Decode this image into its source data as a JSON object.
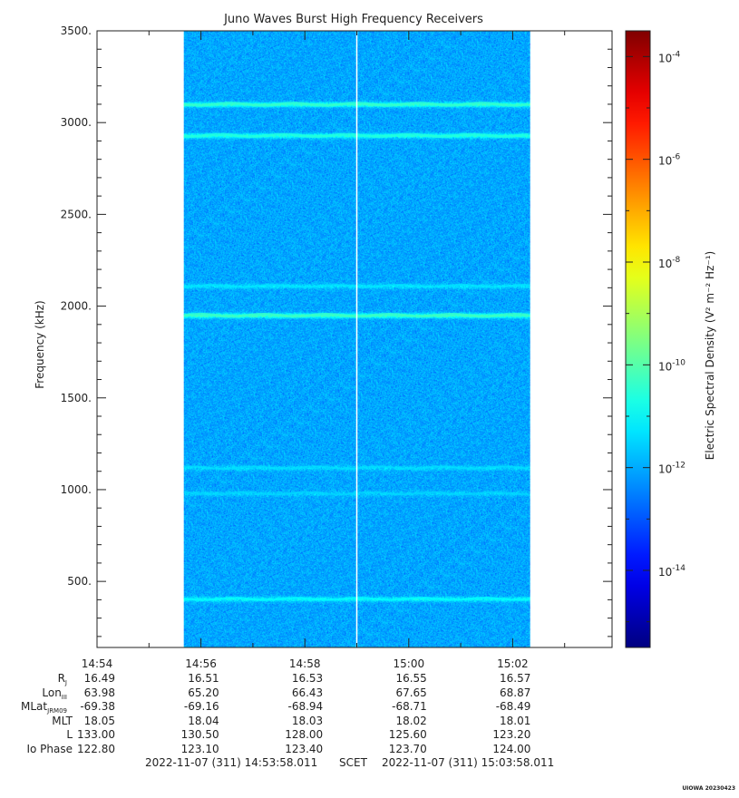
{
  "chart_data": {
    "type": "heatmap",
    "title": "Juno Waves Burst High Frequency Receivers",
    "ylabel": "Frequency (kHz)",
    "ylim": [
      140,
      3500
    ],
    "yticks": [
      {
        "v": 500,
        "label": "500."
      },
      {
        "v": 1000,
        "label": "1000."
      },
      {
        "v": 1500,
        "label": "1500."
      },
      {
        "v": 2000,
        "label": "2000."
      },
      {
        "v": 2500,
        "label": "2500."
      },
      {
        "v": 3000,
        "label": "3000."
      },
      {
        "v": 3500,
        "label": "3500."
      }
    ],
    "xlim_min": [
      0,
      11
    ],
    "xticks": [
      {
        "v": 0,
        "label": "14:54"
      },
      {
        "v": 2,
        "label": "14:56"
      },
      {
        "v": 4,
        "label": "14:58"
      },
      {
        "v": 6,
        "label": "15:00"
      },
      {
        "v": 8,
        "label": "15:02"
      }
    ],
    "data_window_min": [
      1.67,
      8.33
    ],
    "data_gap_min": 5.0,
    "background_level_log10": -12,
    "emission_bands": [
      {
        "freq_khz": 3100,
        "level_log10": -10.4
      },
      {
        "freq_khz": 2930,
        "level_log10": -10.6
      },
      {
        "freq_khz": 2110,
        "level_log10": -11.3
      },
      {
        "freq_khz": 1950,
        "level_log10": -10.3
      },
      {
        "freq_khz": 1120,
        "level_log10": -11.4
      },
      {
        "freq_khz": 980,
        "level_log10": -11.5
      },
      {
        "freq_khz": 405,
        "level_log10": -11.0
      }
    ],
    "colorbar": {
      "label": "Electric Spectral Density (V² m⁻² Hz⁻¹)",
      "range_log10": [
        -15.5,
        -3.5
      ],
      "ticks": [
        {
          "exp": -4,
          "label": "-4"
        },
        {
          "exp": -6,
          "label": "-6"
        },
        {
          "exp": -8,
          "label": "-8"
        },
        {
          "exp": -10,
          "label": "-10"
        },
        {
          "exp": -12,
          "label": "-12"
        },
        {
          "exp": -14,
          "label": "-14"
        }
      ]
    }
  },
  "ephemeris": {
    "rows": [
      {
        "label": "R",
        "sub": "J",
        "values": [
          "16.49",
          "16.51",
          "16.53",
          "16.55",
          "16.57"
        ]
      },
      {
        "label": "Lon",
        "sub": "III",
        "values": [
          "63.98",
          "65.20",
          "66.43",
          "67.65",
          "68.87"
        ]
      },
      {
        "label": "MLat",
        "sub": "JRM09",
        "values": [
          "-69.38",
          "-69.16",
          "-68.94",
          "-68.71",
          "-68.49"
        ]
      },
      {
        "label": "MLT",
        "sub": "",
        "values": [
          "18.05",
          "18.04",
          "18.03",
          "18.02",
          "18.01"
        ]
      },
      {
        "label": "L",
        "sub": "",
        "values": [
          "133.00",
          "130.50",
          "128.00",
          "125.60",
          "123.20"
        ]
      },
      {
        "label": "Io Phase",
        "sub": "",
        "values": [
          "122.80",
          "123.10",
          "123.40",
          "123.70",
          "124.00"
        ]
      }
    ]
  },
  "footer": {
    "start": "2022-11-07 (311) 14:53:58.011",
    "frame": "SCET",
    "end": "2022-11-07 (311) 15:03:58.011"
  },
  "stamp": "UIOWA 20230423",
  "colors": {
    "background_noise": "#2ec8e0",
    "band": "#3ce67a",
    "axis": "#222222"
  }
}
